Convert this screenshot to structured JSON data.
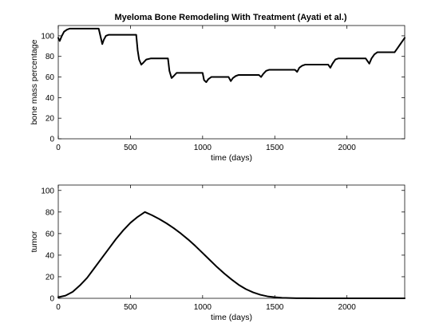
{
  "chart_data": [
    {
      "type": "line",
      "title": "Myeloma Bone Remodeling With Treatment (Ayati et al.)",
      "xlabel": "time (days)",
      "ylabel": "bone mass percentage",
      "xlim": [
        0,
        2400
      ],
      "ylim": [
        0,
        110
      ],
      "xticks": [
        0,
        500,
        1000,
        1500,
        2000
      ],
      "yticks": [
        0,
        20,
        40,
        60,
        80,
        100
      ],
      "grid": false,
      "series": [
        {
          "color": "#000000",
          "x": [
            0,
            10,
            25,
            40,
            60,
            80,
            100,
            280,
            295,
            305,
            315,
            330,
            350,
            380,
            540,
            550,
            560,
            575,
            590,
            610,
            640,
            760,
            770,
            785,
            800,
            820,
            840,
            860,
            1000,
            1010,
            1025,
            1040,
            1060,
            1080,
            1100,
            1180,
            1195,
            1210,
            1230,
            1250,
            1270,
            1390,
            1405,
            1420,
            1440,
            1460,
            1480,
            1640,
            1655,
            1670,
            1690,
            1710,
            1730,
            1870,
            1885,
            1900,
            1920,
            1940,
            1960,
            2130,
            2140,
            2155,
            2170,
            2190,
            2210,
            2330,
            2350,
            2370,
            2390,
            2400
          ],
          "y": [
            98,
            95,
            100,
            104,
            106,
            107,
            107,
            107,
            98,
            92,
            96,
            100,
            101,
            101,
            101,
            86,
            77,
            72,
            74,
            77,
            78,
            78,
            66,
            59,
            61,
            64,
            64,
            64,
            64,
            57,
            55,
            58,
            60,
            60,
            60,
            60,
            56,
            59,
            61,
            62,
            62,
            62,
            60,
            63,
            66,
            67,
            67,
            67,
            65,
            69,
            71,
            72,
            72,
            72,
            69,
            73,
            77,
            78,
            78,
            78,
            76,
            73,
            78,
            82,
            84,
            84,
            88,
            92,
            96,
            98
          ]
        }
      ]
    },
    {
      "type": "line",
      "title": "",
      "xlabel": "time (days)",
      "ylabel": "tumor",
      "xlim": [
        0,
        2400
      ],
      "ylim": [
        0,
        105
      ],
      "xticks": [
        0,
        500,
        1000,
        1500,
        2000
      ],
      "yticks": [
        0,
        20,
        40,
        60,
        80,
        100
      ],
      "grid": false,
      "series": [
        {
          "color": "#000000",
          "x": [
            0,
            50,
            100,
            150,
            200,
            250,
            300,
            350,
            400,
            450,
            500,
            550,
            600,
            650,
            700,
            750,
            800,
            850,
            900,
            950,
            1000,
            1050,
            1100,
            1150,
            1200,
            1250,
            1300,
            1350,
            1400,
            1450,
            1500,
            1550,
            1600,
            1650,
            1700,
            1800,
            1900,
            2000,
            2100,
            2200,
            2300,
            2400
          ],
          "y": [
            1,
            2.5,
            6,
            12,
            19,
            28,
            37,
            46,
            55,
            63,
            70,
            75.5,
            80,
            77,
            73.5,
            69.5,
            65,
            60,
            54.5,
            48.5,
            42,
            35.5,
            29,
            23,
            17.5,
            12.5,
            8.5,
            5.5,
            3.3,
            1.8,
            1,
            0.5,
            0.25,
            0.1,
            0.05,
            0,
            0,
            0,
            0,
            0,
            0,
            0
          ]
        }
      ]
    }
  ]
}
